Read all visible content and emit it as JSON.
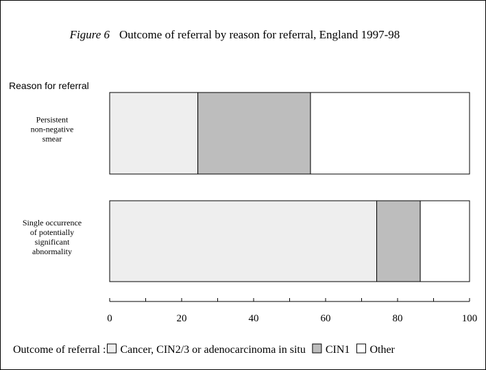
{
  "figure": {
    "label": "Figure 6",
    "title": "Outcome of referral by reason for referral, England 1997-98"
  },
  "chart_data": {
    "type": "bar",
    "orientation": "horizontal",
    "stacked": true,
    "title": "Outcome of referral by reason for referral, England 1997-98",
    "ylabel": "Reason for referral",
    "xlabel": "",
    "xlim": [
      0,
      100
    ],
    "xticks": [
      0,
      20,
      40,
      60,
      80,
      100
    ],
    "categories": [
      [
        "Persistent",
        "non-negative",
        "smear"
      ],
      [
        "Single occurrence",
        "of potentially",
        "significant",
        "abnormality"
      ]
    ],
    "series": [
      {
        "name": "Cancer, CIN2/3 or adenocarcinoma in situ",
        "color": "#eeeeee",
        "values": [
          24.5,
          74.2
        ]
      },
      {
        "name": "CIN1",
        "color": "#bdbdbd",
        "values": [
          31.3,
          12.1
        ]
      },
      {
        "name": "Other",
        "color": "#ffffff",
        "values": [
          44.2,
          13.7
        ]
      }
    ],
    "legend": {
      "title": "Outcome of referral :",
      "placement": "bottom"
    },
    "grid": false
  }
}
